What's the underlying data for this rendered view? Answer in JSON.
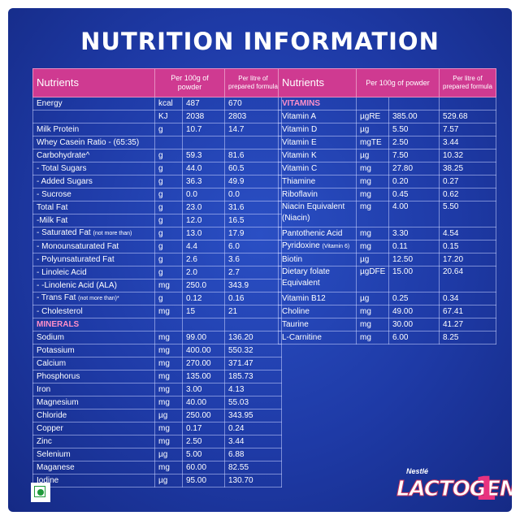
{
  "title": "NUTRITION INFORMATION",
  "left_table": {
    "headers": [
      "Nutrients",
      "Per 100g of powder",
      "Per litre of prepared formula"
    ],
    "rows": [
      {
        "n": "Energy",
        "u": "kcal",
        "p": "487",
        "l": "670"
      },
      {
        "n": "",
        "u": "KJ",
        "p": "2038",
        "l": "2803"
      },
      {
        "n": "Milk Protein",
        "u": "g",
        "p": "10.7",
        "l": "14.7"
      },
      {
        "n": "Whey Casein Ratio - (65:35)",
        "u": "",
        "p": "",
        "l": ""
      },
      {
        "n": "Carbohydrate^",
        "u": "g",
        "p": "59.3",
        "l": "81.6"
      },
      {
        "n": "- Total Sugars",
        "u": "g",
        "p": "44.0",
        "l": "60.5"
      },
      {
        "n": "- Added Sugars",
        "u": "g",
        "p": "36.3",
        "l": "49.9"
      },
      {
        "n": "- Sucrose",
        "u": "g",
        "p": "0.0",
        "l": "0.0"
      },
      {
        "n": "Total Fat",
        "u": "g",
        "p": "23.0",
        "l": "31.6"
      },
      {
        "n": "-Milk Fat",
        "u": "g",
        "p": "12.0",
        "l": "16.5"
      },
      {
        "n": "- Saturated Fat",
        "note": "(not more than)",
        "u": "g",
        "p": "13.0",
        "l": "17.9"
      },
      {
        "n": "- Monounsaturated Fat",
        "u": "g",
        "p": "4.4",
        "l": "6.0"
      },
      {
        "n": "- Polyunsaturated Fat",
        "u": "g",
        "p": "2.6",
        "l": "3.6"
      },
      {
        "n": "- Linoleic Acid",
        "u": "g",
        "p": "2.0",
        "l": "2.7"
      },
      {
        "n": "-  -Linolenic Acid (ALA)",
        "u": "mg",
        "p": "250.0",
        "l": "343.9"
      },
      {
        "n": "- Trans Fat",
        "note": "(not more than)*",
        "u": "g",
        "p": "0.12",
        "l": "0.16"
      },
      {
        "n": "- Cholesterol",
        "u": "mg",
        "p": "15",
        "l": "21"
      }
    ],
    "minerals_label": "MINERALS",
    "minerals": [
      {
        "n": "Sodium",
        "u": "mg",
        "p": "99.00",
        "l": "136.20"
      },
      {
        "n": "Potassium",
        "u": "mg",
        "p": "400.00",
        "l": "550.32"
      },
      {
        "n": "Calcium",
        "u": "mg",
        "p": "270.00",
        "l": "371.47"
      },
      {
        "n": "Phosphorus",
        "u": "mg",
        "p": "135.00",
        "l": "185.73"
      },
      {
        "n": "Iron",
        "u": "mg",
        "p": "3.00",
        "l": "4.13"
      },
      {
        "n": "Magnesium",
        "u": "mg",
        "p": "40.00",
        "l": "55.03"
      },
      {
        "n": "Chloride",
        "u": "µg",
        "p": "250.00",
        "l": "343.95"
      },
      {
        "n": "Copper",
        "u": "mg",
        "p": "0.17",
        "l": "0.24"
      },
      {
        "n": "Zinc",
        "u": "mg",
        "p": "2.50",
        "l": "3.44"
      },
      {
        "n": "Selenium",
        "u": "µg",
        "p": "5.00",
        "l": "6.88"
      },
      {
        "n": "Maganese",
        "u": "mg",
        "p": "60.00",
        "l": "82.55"
      },
      {
        "n": "Iodine",
        "u": "µg",
        "p": "95.00",
        "l": "130.70"
      }
    ]
  },
  "right_table": {
    "headers": [
      "Nutrients",
      "Per 100g of powder",
      "Per litre of prepared formula"
    ],
    "vitamins_label": "VITAMINS",
    "rows": [
      {
        "n": "Vitamin A",
        "u": "µgRE",
        "p": "385.00",
        "l": "529.68"
      },
      {
        "n": "Vitamin D",
        "u": "µg",
        "p": "5.50",
        "l": "7.57"
      },
      {
        "n": "Vitamin E",
        "u": "mgTE",
        "p": "2.50",
        "l": "3.44"
      },
      {
        "n": "Vitamin K",
        "u": "µg",
        "p": "7.50",
        "l": "10.32"
      },
      {
        "n": "Vitamin C",
        "u": "mg",
        "p": "27.80",
        "l": "38.25"
      },
      {
        "n": "Thiamine",
        "u": "mg",
        "p": "0.20",
        "l": "0.27"
      },
      {
        "n": "Riboflavin",
        "u": "mg",
        "p": "0.45",
        "l": "0.62"
      },
      {
        "n": "Niacin Equivalent (Niacin)",
        "u": "mg",
        "p": "4.00",
        "l": "5.50",
        "tall": true
      },
      {
        "n": "Pantothenic Acid",
        "u": "mg",
        "p": "3.30",
        "l": "4.54"
      },
      {
        "n": "Pyridoxine",
        "note": "(Vitamin 6)",
        "u": "mg",
        "p": "0.11",
        "l": "0.15"
      },
      {
        "n": "Biotin",
        "u": "µg",
        "p": "12.50",
        "l": "17.20"
      },
      {
        "n": "Dietary folate Equivalent",
        "u": "µgDFE",
        "p": "15.00",
        "l": "20.64",
        "tall": true
      },
      {
        "n": "Vitamin B12",
        "u": "µg",
        "p": "0.25",
        "l": "0.34"
      },
      {
        "n": "Choline",
        "u": "mg",
        "p": "49.00",
        "l": "67.41"
      },
      {
        "n": "Taurine",
        "u": "mg",
        "p": "30.00",
        "l": "41.27"
      },
      {
        "n": "L-Carnitine",
        "u": "mg",
        "p": "6.00",
        "l": "8.25"
      }
    ]
  },
  "brand": {
    "maker": "Nestlé",
    "name": "LACTOGEN",
    "stage": "1"
  },
  "colors": {
    "background": "#1e3aa6",
    "header": "#cf3a91",
    "section": "#ff8fc8",
    "veg_mark": "#1f9a3a"
  }
}
